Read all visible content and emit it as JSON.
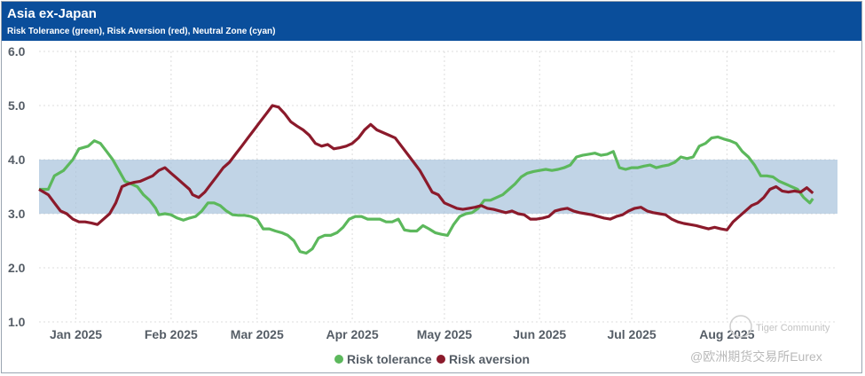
{
  "header": {
    "title": "Asia ex-Japan",
    "subtitle": "Risk Tolerance (green), Risk Aversion (red), Neutral Zone (cyan)"
  },
  "colors": {
    "header_bg": "#0a4e9b",
    "tolerance": "#5cb85c",
    "aversion": "#8b1a2b",
    "neutral": "#a9c4dc"
  },
  "watermark": {
    "community": "Tiger Community",
    "source": "@欧洲期货交易所Eurex"
  },
  "chart_data": {
    "type": "line",
    "title": "Asia ex-Japan",
    "subtitle": "Risk Tolerance (green), Risk Aversion (red), Neutral Zone (cyan)",
    "x_ticks": [
      "Jan 2025",
      "Feb 2025",
      "Mar 2025",
      "Apr 2025",
      "May 2025",
      "Jun 2025",
      "Jul 2025",
      "Aug 2025"
    ],
    "y_ticks": [
      "1.0",
      "2.0",
      "3.0",
      "4.0",
      "5.0",
      "6.0"
    ],
    "ylim": [
      1.0,
      6.0
    ],
    "x_unit": "days since 2024-12-20",
    "neutral_zone": [
      3.0,
      4.0
    ],
    "legend": [
      "Risk tolerance",
      "Risk aversion"
    ],
    "series": [
      {
        "name": "Risk tolerance",
        "points": [
          [
            0,
            3.45
          ],
          [
            3,
            3.45
          ],
          [
            5,
            3.7
          ],
          [
            8,
            3.8
          ],
          [
            11,
            4.0
          ],
          [
            13,
            4.2
          ],
          [
            16,
            4.25
          ],
          [
            18,
            4.35
          ],
          [
            20,
            4.3
          ],
          [
            22,
            4.15
          ],
          [
            24,
            4.0
          ],
          [
            26,
            3.8
          ],
          [
            28,
            3.6
          ],
          [
            30,
            3.55
          ],
          [
            32,
            3.5
          ],
          [
            34,
            3.35
          ],
          [
            36,
            3.25
          ],
          [
            38,
            3.1
          ],
          [
            39,
            2.98
          ],
          [
            41,
            3.0
          ],
          [
            43,
            2.98
          ],
          [
            45,
            2.92
          ],
          [
            47,
            2.88
          ],
          [
            49,
            2.92
          ],
          [
            51,
            2.95
          ],
          [
            53,
            3.05
          ],
          [
            55,
            3.2
          ],
          [
            57,
            3.2
          ],
          [
            59,
            3.15
          ],
          [
            61,
            3.05
          ],
          [
            63,
            2.98
          ],
          [
            65,
            2.97
          ],
          [
            67,
            2.97
          ],
          [
            69,
            2.95
          ],
          [
            71,
            2.9
          ],
          [
            73,
            2.72
          ],
          [
            75,
            2.72
          ],
          [
            77,
            2.68
          ],
          [
            79,
            2.65
          ],
          [
            81,
            2.6
          ],
          [
            83,
            2.5
          ],
          [
            85,
            2.3
          ],
          [
            87,
            2.27
          ],
          [
            89,
            2.35
          ],
          [
            91,
            2.55
          ],
          [
            93,
            2.6
          ],
          [
            95,
            2.6
          ],
          [
            97,
            2.65
          ],
          [
            99,
            2.75
          ],
          [
            101,
            2.9
          ],
          [
            103,
            2.95
          ],
          [
            105,
            2.95
          ],
          [
            107,
            2.9
          ],
          [
            109,
            2.9
          ],
          [
            111,
            2.9
          ],
          [
            113,
            2.85
          ],
          [
            115,
            2.85
          ],
          [
            117,
            2.9
          ],
          [
            119,
            2.7
          ],
          [
            121,
            2.68
          ],
          [
            123,
            2.68
          ],
          [
            125,
            2.78
          ],
          [
            127,
            2.72
          ],
          [
            129,
            2.65
          ],
          [
            131,
            2.62
          ],
          [
            133,
            2.6
          ],
          [
            135,
            2.8
          ],
          [
            137,
            2.95
          ],
          [
            139,
            3.0
          ],
          [
            141,
            3.02
          ],
          [
            143,
            3.1
          ],
          [
            145,
            3.25
          ],
          [
            147,
            3.25
          ],
          [
            149,
            3.3
          ],
          [
            151,
            3.35
          ],
          [
            153,
            3.45
          ],
          [
            155,
            3.55
          ],
          [
            157,
            3.68
          ],
          [
            159,
            3.75
          ],
          [
            161,
            3.78
          ],
          [
            163,
            3.8
          ],
          [
            165,
            3.82
          ],
          [
            167,
            3.8
          ],
          [
            169,
            3.82
          ],
          [
            171,
            3.85
          ],
          [
            173,
            3.9
          ],
          [
            175,
            4.05
          ],
          [
            177,
            4.08
          ],
          [
            179,
            4.1
          ],
          [
            181,
            4.12
          ],
          [
            183,
            4.08
          ],
          [
            185,
            4.1
          ],
          [
            187,
            4.15
          ],
          [
            189,
            3.85
          ],
          [
            191,
            3.82
          ],
          [
            193,
            3.85
          ],
          [
            195,
            3.85
          ],
          [
            197,
            3.88
          ],
          [
            199,
            3.9
          ],
          [
            201,
            3.85
          ],
          [
            203,
            3.88
          ],
          [
            205,
            3.9
          ],
          [
            207,
            3.95
          ],
          [
            209,
            4.05
          ],
          [
            211,
            4.02
          ],
          [
            213,
            4.05
          ],
          [
            215,
            4.25
          ],
          [
            217,
            4.3
          ],
          [
            219,
            4.4
          ],
          [
            221,
            4.42
          ],
          [
            223,
            4.38
          ],
          [
            225,
            4.35
          ],
          [
            227,
            4.3
          ],
          [
            229,
            4.15
          ],
          [
            231,
            4.05
          ],
          [
            233,
            3.9
          ],
          [
            235,
            3.7
          ],
          [
            237,
            3.7
          ],
          [
            239,
            3.68
          ],
          [
            241,
            3.6
          ],
          [
            243,
            3.55
          ],
          [
            245,
            3.5
          ],
          [
            247,
            3.45
          ],
          [
            249,
            3.3
          ],
          [
            251,
            3.2
          ],
          [
            252,
            3.28
          ]
        ]
      },
      {
        "name": "Risk aversion",
        "points": [
          [
            0,
            3.45
          ],
          [
            3,
            3.35
          ],
          [
            5,
            3.2
          ],
          [
            7,
            3.05
          ],
          [
            9,
            3.0
          ],
          [
            11,
            2.9
          ],
          [
            13,
            2.85
          ],
          [
            15,
            2.85
          ],
          [
            17,
            2.83
          ],
          [
            19,
            2.8
          ],
          [
            21,
            2.9
          ],
          [
            23,
            3.0
          ],
          [
            25,
            3.2
          ],
          [
            27,
            3.5
          ],
          [
            29,
            3.55
          ],
          [
            31,
            3.58
          ],
          [
            33,
            3.6
          ],
          [
            35,
            3.65
          ],
          [
            37,
            3.7
          ],
          [
            39,
            3.8
          ],
          [
            41,
            3.85
          ],
          [
            43,
            3.75
          ],
          [
            45,
            3.65
          ],
          [
            47,
            3.55
          ],
          [
            49,
            3.45
          ],
          [
            50,
            3.35
          ],
          [
            52,
            3.3
          ],
          [
            54,
            3.4
          ],
          [
            56,
            3.55
          ],
          [
            58,
            3.7
          ],
          [
            60,
            3.85
          ],
          [
            62,
            3.95
          ],
          [
            64,
            4.1
          ],
          [
            66,
            4.25
          ],
          [
            68,
            4.4
          ],
          [
            70,
            4.55
          ],
          [
            72,
            4.7
          ],
          [
            74,
            4.85
          ],
          [
            76,
            5.0
          ],
          [
            78,
            4.97
          ],
          [
            80,
            4.85
          ],
          [
            82,
            4.7
          ],
          [
            84,
            4.62
          ],
          [
            86,
            4.55
          ],
          [
            88,
            4.45
          ],
          [
            90,
            4.3
          ],
          [
            92,
            4.25
          ],
          [
            94,
            4.28
          ],
          [
            96,
            4.2
          ],
          [
            98,
            4.22
          ],
          [
            100,
            4.25
          ],
          [
            102,
            4.3
          ],
          [
            104,
            4.4
          ],
          [
            106,
            4.55
          ],
          [
            108,
            4.65
          ],
          [
            110,
            4.55
          ],
          [
            112,
            4.5
          ],
          [
            114,
            4.45
          ],
          [
            116,
            4.4
          ],
          [
            118,
            4.25
          ],
          [
            120,
            4.1
          ],
          [
            122,
            3.95
          ],
          [
            124,
            3.8
          ],
          [
            126,
            3.6
          ],
          [
            128,
            3.4
          ],
          [
            130,
            3.35
          ],
          [
            132,
            3.2
          ],
          [
            134,
            3.15
          ],
          [
            136,
            3.1
          ],
          [
            138,
            3.08
          ],
          [
            140,
            3.1
          ],
          [
            142,
            3.12
          ],
          [
            144,
            3.15
          ],
          [
            146,
            3.1
          ],
          [
            148,
            3.08
          ],
          [
            150,
            3.05
          ],
          [
            152,
            3.02
          ],
          [
            154,
            3.05
          ],
          [
            156,
            3.0
          ],
          [
            158,
            2.98
          ],
          [
            160,
            2.9
          ],
          [
            162,
            2.9
          ],
          [
            164,
            2.92
          ],
          [
            166,
            2.95
          ],
          [
            168,
            3.05
          ],
          [
            170,
            3.08
          ],
          [
            172,
            3.1
          ],
          [
            174,
            3.05
          ],
          [
            176,
            3.02
          ],
          [
            178,
            3.0
          ],
          [
            180,
            2.98
          ],
          [
            182,
            2.95
          ],
          [
            184,
            2.92
          ],
          [
            186,
            2.9
          ],
          [
            188,
            2.95
          ],
          [
            190,
            2.98
          ],
          [
            192,
            3.05
          ],
          [
            194,
            3.1
          ],
          [
            196,
            3.12
          ],
          [
            198,
            3.05
          ],
          [
            200,
            3.02
          ],
          [
            202,
            3.0
          ],
          [
            204,
            2.98
          ],
          [
            206,
            2.9
          ],
          [
            208,
            2.85
          ],
          [
            210,
            2.82
          ],
          [
            212,
            2.8
          ],
          [
            214,
            2.78
          ],
          [
            216,
            2.75
          ],
          [
            218,
            2.72
          ],
          [
            220,
            2.75
          ],
          [
            222,
            2.72
          ],
          [
            224,
            2.7
          ],
          [
            226,
            2.85
          ],
          [
            228,
            2.95
          ],
          [
            230,
            3.05
          ],
          [
            232,
            3.15
          ],
          [
            234,
            3.2
          ],
          [
            236,
            3.3
          ],
          [
            238,
            3.45
          ],
          [
            240,
            3.5
          ],
          [
            242,
            3.42
          ],
          [
            244,
            3.4
          ],
          [
            246,
            3.42
          ],
          [
            248,
            3.4
          ],
          [
            250,
            3.48
          ],
          [
            252,
            3.38
          ]
        ]
      }
    ]
  }
}
